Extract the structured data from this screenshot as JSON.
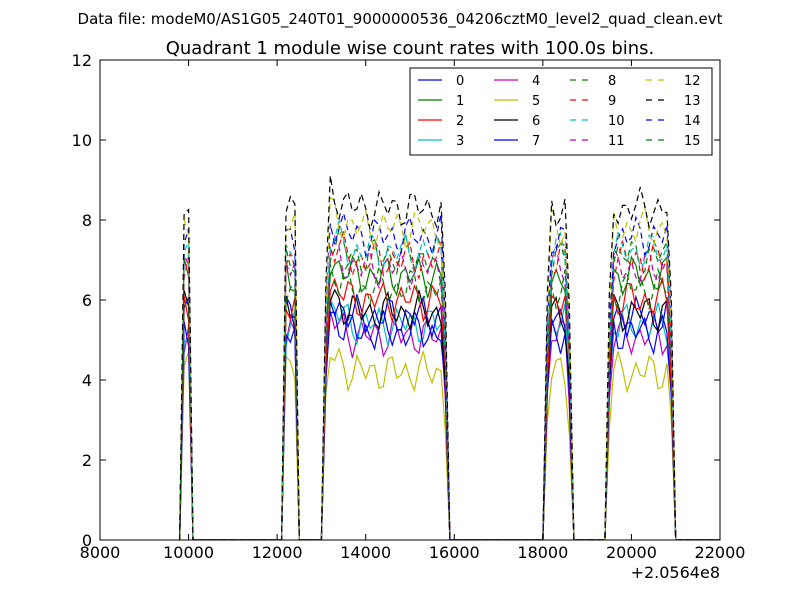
{
  "suptitle": "Data file: modeM0/AS1G05_240T01_9000000536_04206cztM0_level2_quad_clean.evt",
  "chart_data": {
    "type": "line",
    "title": "Quadrant 1 module wise count rates with 100.0s bins.",
    "xlabel": "",
    "ylabel": "",
    "x_offset_label": "+2.0564e8",
    "xlim": [
      8000,
      22000
    ],
    "ylim": [
      0,
      12
    ],
    "x_ticks": [
      8000,
      10000,
      12000,
      14000,
      16000,
      18000,
      20000,
      22000
    ],
    "x_tick_labels": [
      "8000",
      "10000",
      "12000",
      "14000",
      "16000",
      "18000",
      "20000",
      "22000"
    ],
    "y_ticks": [
      0,
      2,
      4,
      6,
      8,
      10,
      12
    ],
    "y_tick_labels": [
      "0",
      "2",
      "4",
      "6",
      "8",
      "10",
      "12"
    ],
    "grid": false,
    "legend": {
      "placement": "top-right",
      "columns": 4
    },
    "segments": [
      {
        "x0": 9900,
        "dx": 100,
        "count": 2
      },
      {
        "x0": 12200,
        "dx": 100,
        "count": 3
      },
      {
        "x0": 13100,
        "dx": 100,
        "count": 28
      },
      {
        "x0": 18100,
        "dx": 100,
        "count": 6
      },
      {
        "x0": 19500,
        "dx": 100,
        "count": 15
      }
    ],
    "series": [
      {
        "name": "0",
        "color": "#0000ff",
        "dash": "solid",
        "level": 5.6
      },
      {
        "name": "1",
        "color": "#008000",
        "dash": "solid",
        "level": 6.6
      },
      {
        "name": "2",
        "color": "#ff0000",
        "dash": "solid",
        "level": 6.0
      },
      {
        "name": "3",
        "color": "#00bfbf",
        "dash": "solid",
        "level": 5.4
      },
      {
        "name": "4",
        "color": "#bf00bf",
        "dash": "solid",
        "level": 5.1
      },
      {
        "name": "5",
        "color": "#bfbf00",
        "dash": "solid",
        "level": 4.2
      },
      {
        "name": "6",
        "color": "#000000",
        "dash": "solid",
        "level": 5.7
      },
      {
        "name": "7",
        "color": "#0000ff",
        "dash": "solid",
        "level": 5.2
      },
      {
        "name": "8",
        "color": "#008000",
        "dash": "dashed",
        "level": 6.3
      },
      {
        "name": "9",
        "color": "#ff0000",
        "dash": "dashed",
        "level": 7.0
      },
      {
        "name": "10",
        "color": "#00bfbf",
        "dash": "dashed",
        "level": 7.2
      },
      {
        "name": "11",
        "color": "#bf00bf",
        "dash": "dashed",
        "level": 6.8
      },
      {
        "name": "12",
        "color": "#bfbf00",
        "dash": "dashed",
        "level": 7.8
      },
      {
        "name": "13",
        "color": "#000000",
        "dash": "dashed",
        "level": 8.3
      },
      {
        "name": "14",
        "color": "#0000ff",
        "dash": "dashed",
        "level": 7.6
      },
      {
        "name": "15",
        "color": "#008000",
        "dash": "dashed",
        "level": 7.1
      }
    ]
  }
}
